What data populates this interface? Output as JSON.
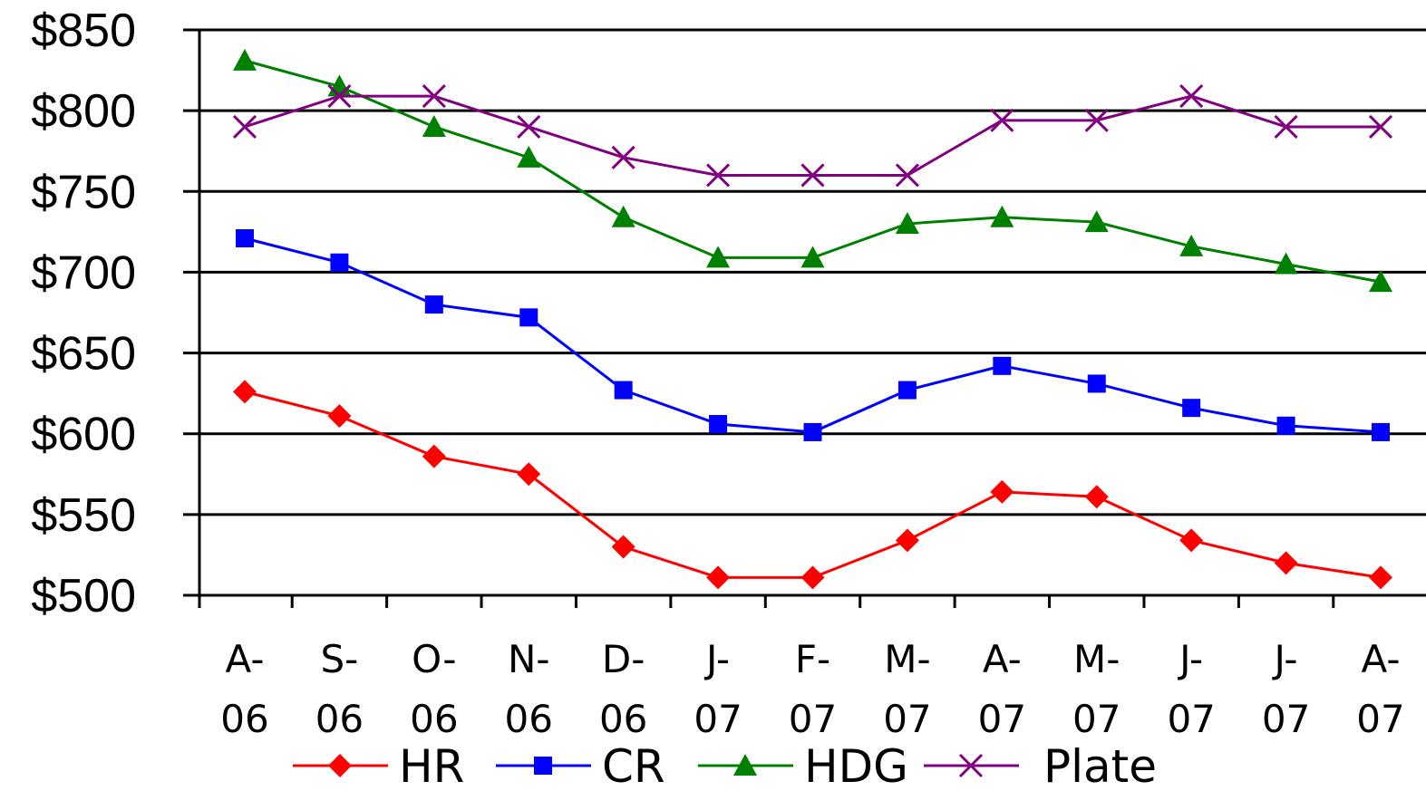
{
  "chart_data": {
    "type": "line",
    "title": "",
    "xlabel": "",
    "ylabel": "",
    "categories": [
      [
        "A-",
        "06"
      ],
      [
        "S-",
        "06"
      ],
      [
        "O-",
        "06"
      ],
      [
        "N-",
        "06"
      ],
      [
        "D-",
        "06"
      ],
      [
        "J-",
        "07"
      ],
      [
        "F-",
        "07"
      ],
      [
        "M-",
        "07"
      ],
      [
        "A-",
        "07"
      ],
      [
        "M-",
        "07"
      ],
      [
        "J-",
        "07"
      ],
      [
        "J-",
        "07"
      ],
      [
        "A-",
        "07"
      ]
    ],
    "ylim": [
      500,
      850
    ],
    "yticks": [
      "$850",
      "$800",
      "$750",
      "$700",
      "$650",
      "$600",
      "$550",
      "$500"
    ],
    "ytick_values": [
      850,
      800,
      750,
      700,
      650,
      600,
      550,
      500
    ],
    "grid": true,
    "legend_position": "bottom",
    "series": [
      {
        "name": "HR",
        "color": "#ff0000",
        "marker": "diamond",
        "values": [
          626,
          611,
          586,
          575,
          530,
          511,
          511,
          534,
          564,
          561,
          534,
          520,
          511
        ]
      },
      {
        "name": "CR",
        "color": "#0000ff",
        "marker": "square",
        "values": [
          721,
          706,
          680,
          672,
          627,
          606,
          601,
          627,
          642,
          631,
          616,
          605,
          601
        ]
      },
      {
        "name": "HDG",
        "color": "#008000",
        "marker": "triangle",
        "values": [
          831,
          815,
          790,
          771,
          734,
          709,
          709,
          730,
          734,
          731,
          716,
          705,
          694
        ]
      },
      {
        "name": "Plate",
        "color": "#800080",
        "marker": "x",
        "values": [
          790,
          809,
          809,
          790,
          771,
          760,
          760,
          760,
          794,
          794,
          809,
          790,
          790
        ]
      }
    ]
  }
}
